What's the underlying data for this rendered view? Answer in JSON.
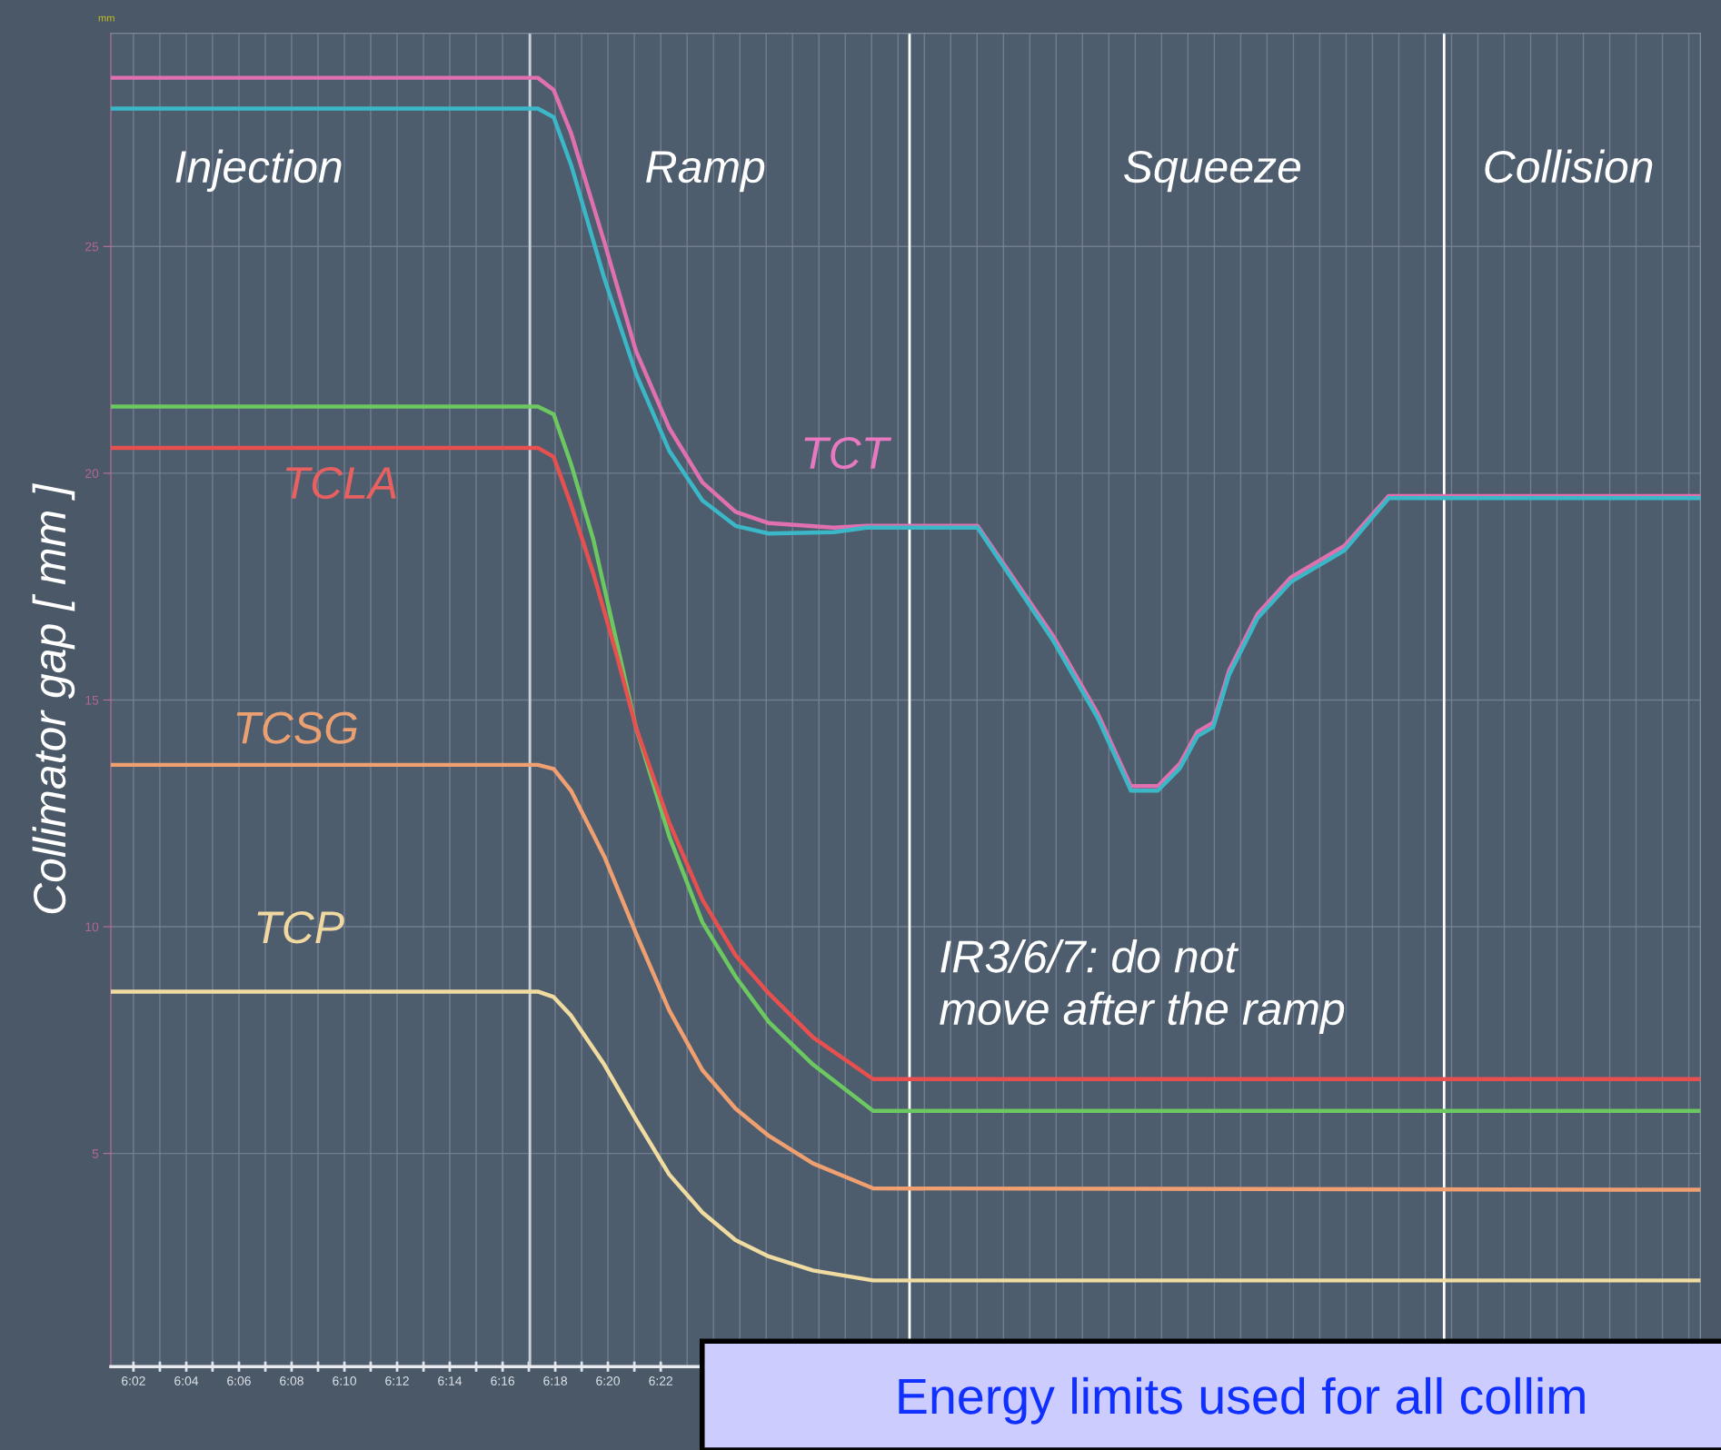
{
  "chart_data": {
    "type": "line",
    "ylabel": "Collimator gap [ mm ]",
    "xlim": [
      6.019,
      7.024
    ],
    "ylim": [
      0.3,
      29.7
    ],
    "yticks": [
      5,
      10,
      15,
      20,
      25
    ],
    "xticks": [
      {
        "value": 6.0333,
        "label": "6:02"
      },
      {
        "value": 6.05,
        "label": null
      },
      {
        "value": 6.0667,
        "label": "6:04"
      },
      {
        "value": 6.0833,
        "label": null
      },
      {
        "value": 6.1,
        "label": "6:06"
      },
      {
        "value": 6.1167,
        "label": null
      },
      {
        "value": 6.1333,
        "label": "6:08"
      },
      {
        "value": 6.15,
        "label": null
      },
      {
        "value": 6.1667,
        "label": "6:10"
      },
      {
        "value": 6.1833,
        "label": null
      },
      {
        "value": 6.2,
        "label": "6:12"
      },
      {
        "value": 6.2167,
        "label": null
      },
      {
        "value": 6.2333,
        "label": "6:14"
      },
      {
        "value": 6.25,
        "label": null
      },
      {
        "value": 6.2667,
        "label": "6:16"
      },
      {
        "value": 6.2833,
        "label": null
      },
      {
        "value": 6.3,
        "label": "6:18"
      },
      {
        "value": 6.3167,
        "label": null
      },
      {
        "value": 6.3333,
        "label": "6:20"
      },
      {
        "value": 6.35,
        "label": null
      },
      {
        "value": 6.3667,
        "label": "6:22"
      }
    ],
    "grid": true,
    "marker": "none",
    "line_style": "solid",
    "ref_lines": [
      {
        "axis": "x",
        "value": 6.284,
        "color": "#c8d0d8"
      },
      {
        "axis": "x",
        "value": 6.524,
        "color": "#ffffff"
      },
      {
        "axis": "x",
        "value": 6.862,
        "color": "#ffffff"
      }
    ],
    "series": [
      {
        "name": "TCT",
        "color": "#e070b0",
        "x": [
          6.019,
          6.289,
          6.299,
          6.31,
          6.331,
          6.351,
          6.372,
          6.393,
          6.414,
          6.435,
          6.476,
          6.497,
          6.567,
          6.615,
          6.643,
          6.664,
          6.681,
          6.695,
          6.706,
          6.716,
          6.726,
          6.744,
          6.765,
          6.799,
          6.827,
          7.024
        ],
        "values": [
          28.72,
          28.72,
          28.45,
          27.5,
          25.1,
          22.7,
          21.0,
          19.8,
          19.15,
          18.9,
          18.8,
          18.84,
          18.84,
          16.4,
          14.7,
          13.1,
          13.1,
          13.6,
          14.3,
          14.5,
          15.65,
          16.9,
          17.7,
          18.4,
          19.5,
          19.5
        ]
      },
      {
        "color": "#3bb8c8",
        "x": [
          6.019,
          6.289,
          6.299,
          6.31,
          6.331,
          6.351,
          6.372,
          6.393,
          6.414,
          6.435,
          6.476,
          6.497,
          6.567,
          6.615,
          6.643,
          6.664,
          6.681,
          6.695,
          6.706,
          6.716,
          6.726,
          6.744,
          6.765,
          6.799,
          6.827,
          7.024
        ],
        "values": [
          28.04,
          28.04,
          27.85,
          26.8,
          24.3,
          22.2,
          20.5,
          19.4,
          18.84,
          18.67,
          18.7,
          18.8,
          18.8,
          16.3,
          14.6,
          13.0,
          13.0,
          13.5,
          14.2,
          14.4,
          15.55,
          16.8,
          17.6,
          18.3,
          19.45,
          19.45
        ]
      },
      {
        "color": "#6cc860",
        "x": [
          6.019,
          6.289,
          6.299,
          6.31,
          6.324,
          6.338,
          6.351,
          6.372,
          6.393,
          6.414,
          6.435,
          6.463,
          6.501,
          7.024
        ],
        "values": [
          21.47,
          21.47,
          21.3,
          20.2,
          18.55,
          16.4,
          14.4,
          12.0,
          10.1,
          8.9,
          7.9,
          6.96,
          5.94,
          5.94
        ]
      },
      {
        "name": "TCLA",
        "color": "#e85050",
        "x": [
          6.019,
          6.289,
          6.299,
          6.31,
          6.324,
          6.338,
          6.351,
          6.372,
          6.393,
          6.414,
          6.435,
          6.463,
          6.501,
          7.024
        ],
        "values": [
          20.56,
          20.56,
          20.36,
          19.3,
          17.8,
          16.1,
          14.4,
          12.3,
          10.6,
          9.37,
          8.53,
          7.56,
          6.64,
          6.64
        ]
      },
      {
        "name": "TCSG",
        "color": "#f0a070",
        "x": [
          6.019,
          6.289,
          6.299,
          6.31,
          6.331,
          6.351,
          6.372,
          6.393,
          6.414,
          6.435,
          6.463,
          6.501,
          7.024
        ],
        "values": [
          13.57,
          13.57,
          13.48,
          13.0,
          11.55,
          9.86,
          8.16,
          6.84,
          5.99,
          5.39,
          4.78,
          4.23,
          4.2
        ]
      },
      {
        "name": "TCP",
        "color": "#f0dca0",
        "x": [
          6.019,
          6.289,
          6.299,
          6.31,
          6.331,
          6.351,
          6.372,
          6.393,
          6.414,
          6.435,
          6.463,
          6.501,
          7.024
        ],
        "values": [
          8.57,
          8.57,
          8.45,
          8.04,
          6.96,
          5.75,
          4.54,
          3.7,
          3.09,
          2.73,
          2.42,
          2.2,
          2.2
        ]
      }
    ],
    "annotations": [
      "Injection",
      "Ramp",
      "Squeeze",
      "Collision",
      "IR3/6/7: do not\nmove after the ramp",
      "mm",
      "Energy limits used for all collim"
    ]
  }
}
